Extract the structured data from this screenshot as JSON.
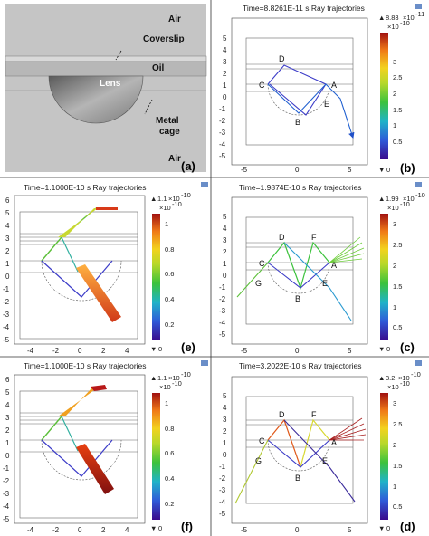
{
  "panel_a": {
    "label": "(a)",
    "regions": {
      "air_top": "Air",
      "coverslip": "Coverslip",
      "oil": "Oil",
      "lens": "Lens",
      "metal": "Metal",
      "cage": "cage",
      "air_bottom": "Air"
    }
  },
  "panel_b": {
    "label": "(b)",
    "title": "Time=8.8261E-11 s  Ray trajectories",
    "cb_max": "8.83",
    "cb_exp": "-11",
    "cb_scale": "-10",
    "points": {
      "A": "A",
      "B": "B",
      "C": "C",
      "D": "D",
      "E": "E"
    }
  },
  "panel_e": {
    "label": "(e)",
    "title": "Time=1.1000E-10 s  Ray trajectories",
    "cb_max": "1.1",
    "cb_exp": "-10",
    "cb_scale": "-10"
  },
  "panel_c": {
    "label": "(c)",
    "title": "Time=1.9874E-10 s  Ray trajectories",
    "cb_max": "1.99",
    "cb_exp": "-10",
    "cb_scale": "-10",
    "points": {
      "A": "A",
      "B": "B",
      "C": "C",
      "D": "D",
      "E": "E",
      "F": "F",
      "G": "G"
    }
  },
  "panel_f": {
    "label": "(f)",
    "title": "Time=1.1000E-10 s  Ray trajectories",
    "cb_max": "1.1",
    "cb_exp": "-10",
    "cb_scale": "-10"
  },
  "panel_d": {
    "label": "(d)",
    "title": "Time=3.2022E-10 s  Ray trajectories",
    "cb_max": "3.2",
    "cb_exp": "-10",
    "cb_scale": "-10",
    "points": {
      "A": "A",
      "B": "B",
      "C": "C",
      "D": "D",
      "E": "E",
      "F": "F",
      "G": "G"
    }
  },
  "axes": {
    "yticks_5": [
      "5",
      "4",
      "3",
      "2",
      "1",
      "0",
      "-1",
      "-2",
      "-3",
      "-4",
      "-5"
    ],
    "yticks_6": [
      "6",
      "5",
      "4",
      "3",
      "2",
      "1",
      "0",
      "-1",
      "-2",
      "-3",
      "-4",
      "-5"
    ],
    "xticks_right": [
      "-5",
      "0",
      "5"
    ],
    "xticks_left": [
      "-4",
      "-2",
      "0",
      "2",
      "4"
    ],
    "cb_ticks_3": [
      "3",
      "2.5",
      "2",
      "1.5",
      "1",
      "0.5"
    ],
    "cb_ticks_1": [
      "1",
      "0.8",
      "0.6",
      "0.4",
      "0.2"
    ],
    "cb_min": "0"
  }
}
